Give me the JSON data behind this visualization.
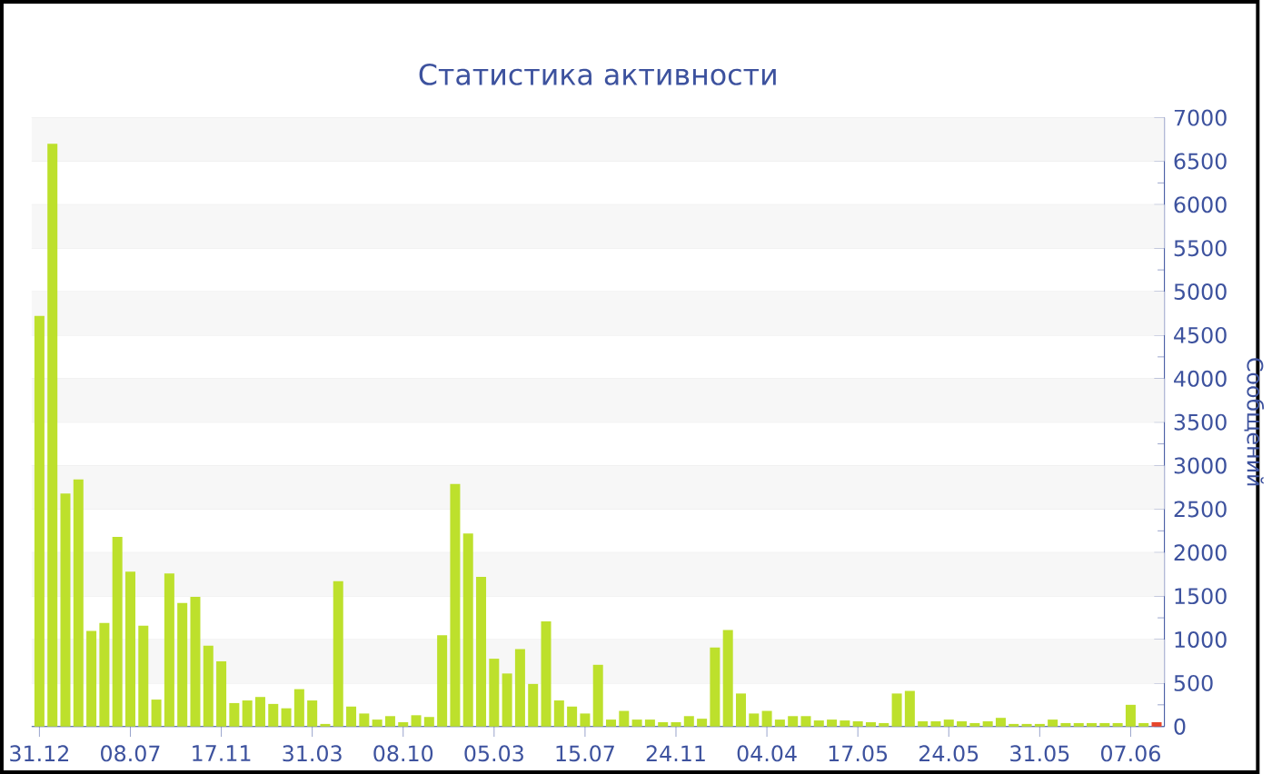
{
  "chart_data": {
    "type": "bar",
    "title": "Статистика активности",
    "ylabel": "Сообщений",
    "categories": [
      "31.12",
      null,
      null,
      null,
      null,
      null,
      null,
      "08.07",
      null,
      null,
      null,
      null,
      null,
      null,
      "17.11",
      null,
      null,
      null,
      null,
      null,
      null,
      "31.03",
      null,
      null,
      null,
      null,
      null,
      null,
      "08.10",
      null,
      null,
      null,
      null,
      null,
      null,
      "05.03",
      null,
      null,
      null,
      null,
      null,
      null,
      "15.07",
      null,
      null,
      null,
      null,
      null,
      null,
      "24.11",
      null,
      null,
      null,
      null,
      null,
      null,
      "04.04",
      null,
      null,
      null,
      null,
      null,
      null,
      "17.05",
      null,
      null,
      null,
      null,
      null,
      null,
      "24.05",
      null,
      null,
      null,
      null,
      null,
      null,
      "31.05",
      null,
      null,
      null,
      null,
      null,
      null,
      "07.06",
      null,
      null
    ],
    "values": [
      4720,
      6700,
      2680,
      2840,
      1100,
      1190,
      2180,
      1780,
      1160,
      310,
      1760,
      1420,
      1490,
      930,
      750,
      270,
      300,
      340,
      260,
      210,
      430,
      300,
      30,
      1670,
      230,
      150,
      80,
      120,
      50,
      130,
      110,
      1050,
      2790,
      2220,
      1720,
      780,
      610,
      890,
      490,
      1210,
      300,
      230,
      150,
      710,
      80,
      180,
      80,
      80,
      50,
      50,
      120,
      90,
      910,
      1110,
      380,
      150,
      180,
      80,
      120,
      120,
      70,
      80,
      70,
      60,
      50,
      40,
      380,
      410,
      60,
      60,
      80,
      60,
      40,
      60,
      100,
      30,
      30,
      30,
      80,
      40,
      40,
      40,
      40,
      40,
      250,
      40,
      50
    ],
    "colors": [
      "#bde02c",
      "#bde02c",
      "#bde02c",
      "#bde02c",
      "#bde02c",
      "#bde02c",
      "#bde02c",
      "#bde02c",
      "#bde02c",
      "#bde02c",
      "#bde02c",
      "#bde02c",
      "#bde02c",
      "#bde02c",
      "#bde02c",
      "#bde02c",
      "#bde02c",
      "#bde02c",
      "#bde02c",
      "#bde02c",
      "#bde02c",
      "#bde02c",
      "#bde02c",
      "#bde02c",
      "#bde02c",
      "#bde02c",
      "#bde02c",
      "#bde02c",
      "#bde02c",
      "#bde02c",
      "#bde02c",
      "#bde02c",
      "#bde02c",
      "#bde02c",
      "#bde02c",
      "#bde02c",
      "#bde02c",
      "#bde02c",
      "#bde02c",
      "#bde02c",
      "#bde02c",
      "#bde02c",
      "#bde02c",
      "#bde02c",
      "#bde02c",
      "#bde02c",
      "#bde02c",
      "#bde02c",
      "#bde02c",
      "#bde02c",
      "#bde02c",
      "#bde02c",
      "#bde02c",
      "#bde02c",
      "#bde02c",
      "#bde02c",
      "#bde02c",
      "#bde02c",
      "#bde02c",
      "#bde02c",
      "#bde02c",
      "#bde02c",
      "#bde02c",
      "#bde02c",
      "#bde02c",
      "#bde02c",
      "#bde02c",
      "#bde02c",
      "#bde02c",
      "#bde02c",
      "#bde02c",
      "#bde02c",
      "#bde02c",
      "#bde02c",
      "#bde02c",
      "#bde02c",
      "#bde02c",
      "#bde02c",
      "#bde02c",
      "#bde02c",
      "#bde02c",
      "#bde02c",
      "#bde02c",
      "#bde02c",
      "#bde02c",
      "#bde02c",
      "#e8462b"
    ],
    "ylim": [
      0,
      7000
    ],
    "yticks": [
      0,
      500,
      1000,
      1500,
      2000,
      2500,
      3000,
      3500,
      4000,
      4500,
      5000,
      5500,
      6000,
      6500,
      7000
    ],
    "grid": "y"
  }
}
